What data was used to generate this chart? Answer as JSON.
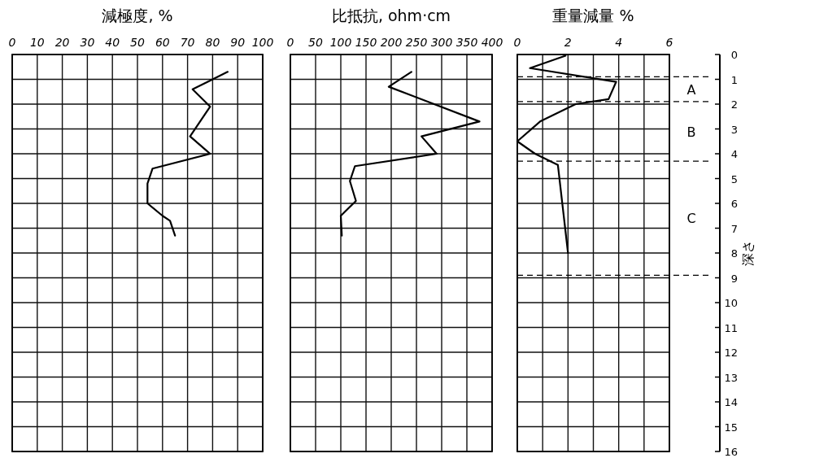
{
  "chart_data": [
    {
      "type": "line",
      "title": "減極度, %",
      "xlim": [
        0,
        100
      ],
      "xticks": [
        0,
        10,
        20,
        30,
        40,
        50,
        60,
        70,
        80,
        90,
        100
      ],
      "ylim": [
        16,
        0
      ],
      "yticks": [
        0,
        1,
        2,
        3,
        4,
        5,
        6,
        7,
        8,
        9,
        10,
        11,
        12,
        13,
        14,
        15,
        16
      ],
      "tick_labels": "x",
      "grid": true,
      "series": [
        {
          "color": "#000000",
          "x": [
            86,
            72,
            79,
            71,
            79,
            56,
            54,
            54,
            60,
            63,
            65
          ],
          "values": [
            0.7,
            1.4,
            2.1,
            3.3,
            4.0,
            4.6,
            5.2,
            6.0,
            6.5,
            6.7,
            7.3
          ]
        }
      ]
    },
    {
      "type": "line",
      "title": "比抵抗, ohm·cm",
      "xlim": [
        0,
        400
      ],
      "xticks": [
        0,
        50,
        100,
        150,
        200,
        250,
        300,
        350,
        400
      ],
      "ylim": [
        16,
        0
      ],
      "yticks": [
        0,
        1,
        2,
        3,
        4,
        5,
        6,
        7,
        8,
        9,
        10,
        11,
        12,
        13,
        14,
        15,
        16
      ],
      "tick_labels": "x",
      "grid": true,
      "series": [
        {
          "color": "#000000",
          "x": [
            240,
            195,
            375,
            260,
            290,
            128,
            118,
            130,
            100,
            102
          ],
          "values": [
            0.7,
            1.3,
            2.7,
            3.3,
            4.0,
            4.5,
            5.1,
            5.9,
            6.5,
            7.3
          ]
        }
      ]
    },
    {
      "type": "line",
      "title": "重量減量 %",
      "xlim": [
        0,
        6
      ],
      "xticks": [
        0,
        {
          "value": 1,
          "label": null
        },
        2,
        {
          "value": 3,
          "label": null
        },
        4,
        {
          "value": 5,
          "label": null
        },
        6
      ],
      "ylim": [
        16,
        0
      ],
      "yticks": [
        0,
        1,
        2,
        3,
        4,
        5,
        6,
        7,
        8,
        9,
        10,
        11,
        12,
        13,
        14,
        15,
        16
      ],
      "ylabel": "深さ",
      "grid": true,
      "ref_lines": [
        {
          "axis": "y",
          "value": 0.9,
          "line_style": "dashed"
        },
        {
          "axis": "y",
          "value": 1.9,
          "line_style": "dashed"
        },
        {
          "axis": "y",
          "value": 4.3,
          "line_style": "dashed"
        },
        {
          "axis": "y",
          "value": 8.9,
          "line_style": "dashed"
        }
      ],
      "annotations": [
        "A",
        "B",
        "C"
      ],
      "series": [
        {
          "color": "#000000",
          "x": [
            1.9,
            0.5,
            3.9,
            3.6,
            2.3,
            0.9,
            0,
            0.7,
            1.6,
            2.0
          ],
          "values": [
            0.05,
            0.55,
            1.1,
            1.8,
            2.0,
            2.7,
            3.5,
            4.0,
            4.45,
            8.0
          ]
        }
      ]
    }
  ]
}
